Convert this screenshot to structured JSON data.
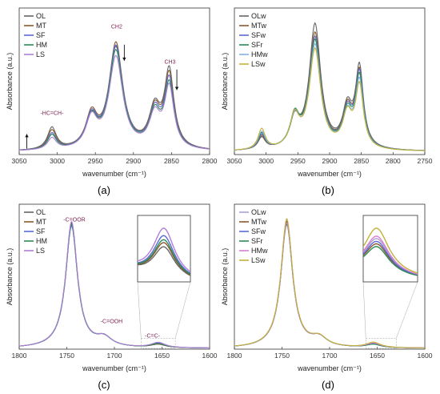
{
  "chart_data": [
    {
      "panel_label": "(a)",
      "type": "line",
      "xlabel": "wavenumber (cm⁻¹)",
      "ylabel": "Absorbance (a.u.)",
      "xlim": [
        3050,
        2800
      ],
      "x_ticks": [
        3050,
        3000,
        2950,
        2900,
        2850,
        2800
      ],
      "ylim": [
        0,
        1.0
      ],
      "legend_position": "top-left",
      "peaks": [
        3007,
        2953,
        2922,
        2870,
        2853
      ],
      "series": [
        {
          "name": "OL",
          "color": "#666666",
          "values": [
            0.02,
            0.15,
            0.2,
            0.69,
            0.26,
            0.52
          ]
        },
        {
          "name": "MT",
          "color": "#8b5a2b",
          "values": [
            0.02,
            0.13,
            0.22,
            0.72,
            0.25,
            0.49
          ]
        },
        {
          "name": "SF",
          "color": "#5a6ad8",
          "values": [
            0.02,
            0.11,
            0.21,
            0.7,
            0.24,
            0.46
          ]
        },
        {
          "name": "HM",
          "color": "#2e8b57",
          "values": [
            0.02,
            0.1,
            0.2,
            0.67,
            0.23,
            0.43
          ]
        },
        {
          "name": "LS",
          "color": "#b07fd8",
          "values": [
            0.02,
            0.08,
            0.2,
            0.63,
            0.22,
            0.41
          ]
        }
      ],
      "annotations": [
        {
          "text": "CH2",
          "x": 2922,
          "y": 0.86
        },
        {
          "text": "CH3",
          "x": 2852,
          "y": 0.62
        },
        {
          "text": "-HC=CH-",
          "x": 3007,
          "y": 0.27
        }
      ],
      "arrows": [
        {
          "x": 2912,
          "y_from": 0.75,
          "y_to": 0.64
        },
        {
          "x": 2843,
          "y_from": 0.58,
          "y_to": 0.44
        },
        {
          "x": 3040,
          "y_from": 0.04,
          "y_to": 0.14
        }
      ]
    },
    {
      "panel_label": "(b)",
      "type": "line",
      "xlabel": "wavenumber (cm⁻¹)",
      "ylabel": "Absorbance (a.u.)",
      "xlim": [
        3050,
        2750
      ],
      "x_ticks": [
        3050,
        3000,
        2950,
        2900,
        2850,
        2800,
        2750
      ],
      "ylim": [
        0,
        1.0
      ],
      "legend_position": "top-left",
      "peaks": [
        3007,
        2953,
        2922,
        2870,
        2853
      ],
      "series": [
        {
          "name": "OLw",
          "color": "#666666",
          "values": [
            0.02,
            0.08,
            0.18,
            0.85,
            0.26,
            0.54
          ]
        },
        {
          "name": "MTw",
          "color": "#8b5a2b",
          "values": [
            0.02,
            0.09,
            0.19,
            0.79,
            0.25,
            0.51
          ]
        },
        {
          "name": "SFw",
          "color": "#5a6ad8",
          "values": [
            0.02,
            0.1,
            0.2,
            0.76,
            0.24,
            0.5
          ]
        },
        {
          "name": "SFr",
          "color": "#2e8b57",
          "values": [
            0.02,
            0.11,
            0.21,
            0.74,
            0.23,
            0.48
          ]
        },
        {
          "name": "HMw",
          "color": "#7fb3e0",
          "values": [
            0.02,
            0.12,
            0.2,
            0.71,
            0.22,
            0.45
          ]
        },
        {
          "name": "LSw",
          "color": "#c2b23a",
          "values": [
            0.02,
            0.14,
            0.21,
            0.68,
            0.22,
            0.42
          ]
        }
      ]
    },
    {
      "panel_label": "(c)",
      "type": "line",
      "xlabel": "wavenumber (cm⁻¹)",
      "ylabel": "Absorbance (a.u.)",
      "xlim": [
        1800,
        1600
      ],
      "x_ticks": [
        1800,
        1750,
        1700,
        1650,
        1600
      ],
      "ylim": [
        0,
        1.0
      ],
      "legend_position": "top-left",
      "peaks": [
        1745,
        1711,
        1654
      ],
      "series": [
        {
          "name": "OL",
          "color": "#666666",
          "values": [
            0.86,
            0.06,
            0.022
          ]
        },
        {
          "name": "MT",
          "color": "#8b5a2b",
          "values": [
            0.85,
            0.06,
            0.025
          ]
        },
        {
          "name": "SF",
          "color": "#5a6ad8",
          "values": [
            0.84,
            0.06,
            0.03
          ]
        },
        {
          "name": "HM",
          "color": "#2e8b57",
          "values": [
            0.85,
            0.06,
            0.027
          ]
        },
        {
          "name": "LS",
          "color": "#b07fd8",
          "values": [
            0.87,
            0.06,
            0.035
          ]
        }
      ],
      "annotations": [
        {
          "text": "-C=OOR",
          "x": 1742,
          "y": 0.88
        },
        {
          "text": "-C=OOH",
          "x": 1703,
          "y": 0.18
        },
        {
          "text": "-C=C-",
          "x": 1660,
          "y": 0.08
        }
      ],
      "inset": {
        "x_range": [
          1672,
          1636
        ]
      }
    },
    {
      "panel_label": "(d)",
      "type": "line",
      "xlabel": "wavenumber (cm⁻¹)",
      "ylabel": "Absorbance (a.u.)",
      "xlim": [
        1800,
        1600
      ],
      "x_ticks": [
        1800,
        1750,
        1700,
        1650,
        1600
      ],
      "ylim": [
        0,
        1.0
      ],
      "legend_position": "top-left",
      "peaks": [
        1745,
        1711,
        1654
      ],
      "series": [
        {
          "name": "OLw",
          "color": "#b0a0d0",
          "values": [
            0.88,
            0.06,
            0.028
          ]
        },
        {
          "name": "MTw",
          "color": "#8b5a2b",
          "values": [
            0.87,
            0.06,
            0.024
          ]
        },
        {
          "name": "SFw",
          "color": "#5a6ad8",
          "values": [
            0.86,
            0.06,
            0.026
          ]
        },
        {
          "name": "SFr",
          "color": "#2e8b57",
          "values": [
            0.85,
            0.06,
            0.022
          ]
        },
        {
          "name": "HMw",
          "color": "#d87fd0",
          "values": [
            0.86,
            0.06,
            0.03
          ]
        },
        {
          "name": "LSw",
          "color": "#c2b23a",
          "values": [
            0.89,
            0.06,
            0.036
          ]
        }
      ],
      "inset": {
        "x_range": [
          1662,
          1630
        ]
      }
    }
  ]
}
